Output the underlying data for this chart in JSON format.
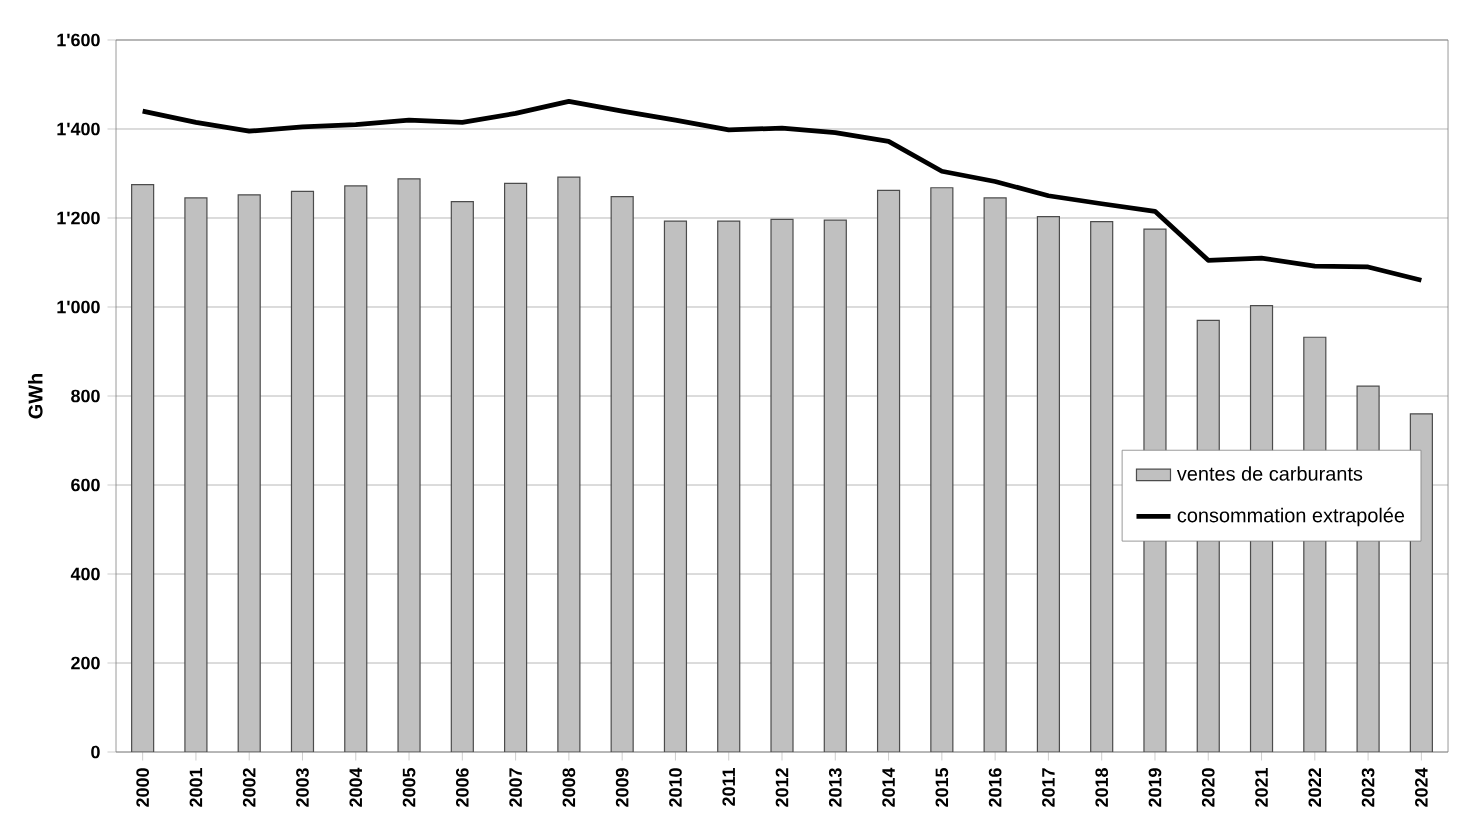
{
  "chart_data": {
    "type": "bar",
    "ylabel": "GWh",
    "categories": [
      "2000",
      "2001",
      "2002",
      "2003",
      "2004",
      "2005",
      "2006",
      "2007",
      "2008",
      "2009",
      "2010",
      "2011",
      "2012",
      "2013",
      "2014",
      "2015",
      "2016",
      "2017",
      "2018",
      "2019",
      "2020",
      "2021",
      "2022",
      "2023",
      "2024"
    ],
    "series": [
      {
        "name": "ventes de carburants",
        "color": "#c0c0c0",
        "values": [
          1275,
          1245,
          1252,
          1260,
          1272,
          1288,
          1237,
          1278,
          1292,
          1248,
          1193,
          1193,
          1197,
          1195,
          1262,
          1268,
          1245,
          1203,
          1192,
          1175,
          970,
          1003,
          932,
          822,
          760
        ]
      },
      {
        "name": "consommation extrapolée",
        "type": "line",
        "color": "#000000",
        "values": [
          1440,
          1415,
          1395,
          1405,
          1410,
          1420,
          1415,
          1435,
          1462,
          1440,
          1420,
          1398,
          1402,
          1392,
          1372,
          1305,
          1282,
          1250,
          1232,
          1215,
          1105,
          1110,
          1092,
          1090,
          1060
        ]
      }
    ],
    "ylim": [
      0,
      1600
    ],
    "yticks": [
      0,
      200,
      400,
      600,
      800,
      {
        "value": 1000,
        "label": "1'000"
      },
      {
        "value": 1200,
        "label": "1'200"
      },
      {
        "value": 1400,
        "label": "1'400"
      },
      {
        "value": 1600,
        "label": "1'600"
      }
    ],
    "grid": "y",
    "legend": "right"
  }
}
